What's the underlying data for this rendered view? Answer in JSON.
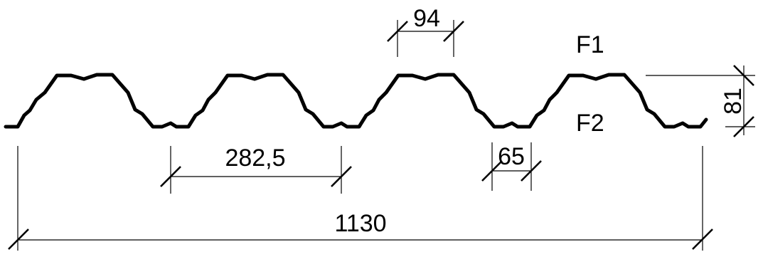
{
  "dimensions": {
    "top_flange_width": "94",
    "bottom_flange_width": "65",
    "rib_pitch": "282,5",
    "total_width": "1130",
    "profile_height": "81"
  },
  "face_labels": {
    "top_face": "F1",
    "bottom_face": "F2"
  },
  "colors": {
    "ink": "#000000",
    "background": "#ffffff"
  }
}
